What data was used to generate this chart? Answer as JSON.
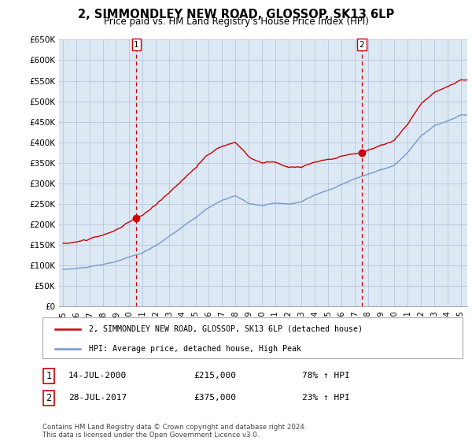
{
  "title": "2, SIMMONDLEY NEW ROAD, GLOSSOP, SK13 6LP",
  "subtitle": "Price paid vs. HM Land Registry's House Price Index (HPI)",
  "legend_line1": "2, SIMMONDLEY NEW ROAD, GLOSSOP, SK13 6LP (detached house)",
  "legend_line2": "HPI: Average price, detached house, High Peak",
  "sale1_date": "14-JUL-2000",
  "sale1_price": 215000,
  "sale1_pct": "78% ↑ HPI",
  "sale2_date": "28-JUL-2017",
  "sale2_price": 375000,
  "sale2_pct": "23% ↑ HPI",
  "footer": "Contains HM Land Registry data © Crown copyright and database right 2024.\nThis data is licensed under the Open Government Licence v3.0.",
  "hpi_color": "#7799cc",
  "price_color": "#cc0000",
  "vline_color": "#cc0000",
  "background_color": "#dde8f5",
  "grid_color": "#bbccdd",
  "ylim": [
    0,
    650000
  ],
  "yticks": [
    0,
    50000,
    100000,
    150000,
    200000,
    250000,
    300000,
    350000,
    400000,
    450000,
    500000,
    550000,
    600000,
    650000
  ],
  "xlim_start": 1994.7,
  "xlim_end": 2025.5,
  "t_sale1": 2000.542,
  "t_sale2": 2017.542
}
